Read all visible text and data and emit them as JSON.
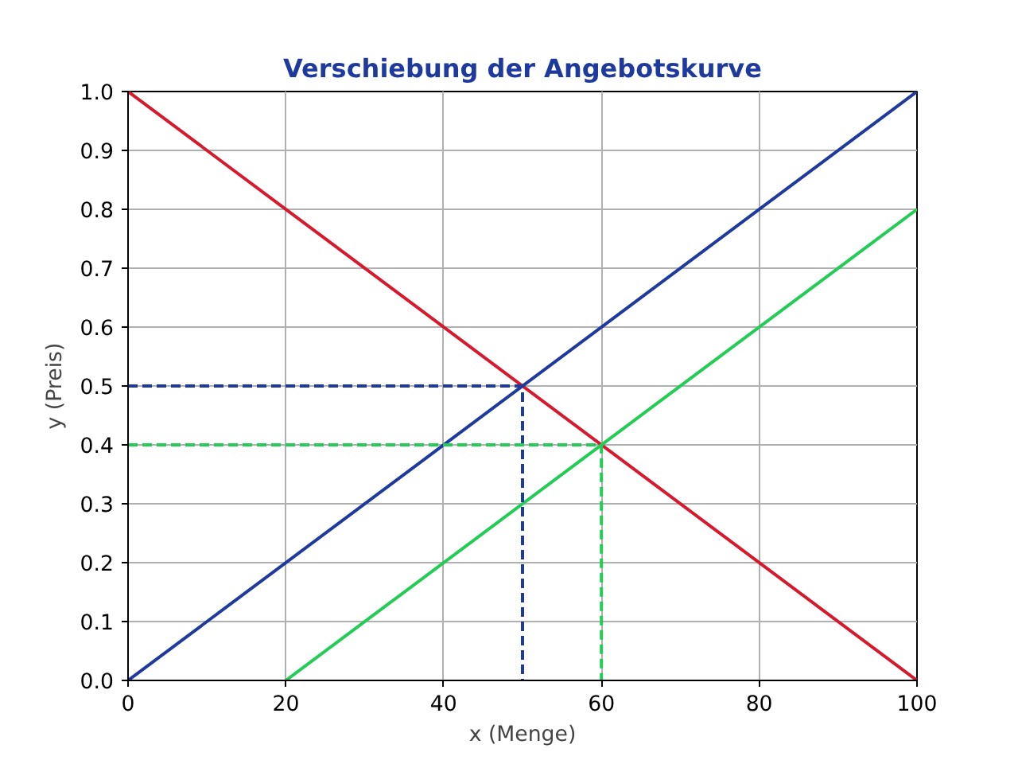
{
  "chart_data": {
    "type": "line",
    "title": "Verschiebung der Angebotskurve",
    "xlabel": "x (Menge)",
    "ylabel": "y (Preis)",
    "xlim": [
      0,
      100
    ],
    "ylim": [
      0,
      1
    ],
    "xticks": [
      0,
      20,
      40,
      60,
      80,
      100
    ],
    "yticks": [
      {
        "value": 0,
        "label": "0.0"
      },
      {
        "value": 0.1,
        "label": "0.1"
      },
      {
        "value": 0.2,
        "label": "0.2"
      },
      {
        "value": 0.3,
        "label": "0.3"
      },
      {
        "value": 0.4,
        "label": "0.4"
      },
      {
        "value": 0.5,
        "label": "0.5"
      },
      {
        "value": 0.6,
        "label": "0.6"
      },
      {
        "value": 0.7,
        "label": "0.7"
      },
      {
        "value": 0.8,
        "label": "0.8"
      },
      {
        "value": 0.9,
        "label": "0.9"
      },
      {
        "value": 1,
        "label": "1.0"
      }
    ],
    "grid": true,
    "line_style": "solid",
    "series": [
      {
        "color": "#d7192d",
        "x": [
          0,
          100
        ],
        "values": [
          1,
          0
        ]
      },
      {
        "color": "#1f3a9e",
        "x": [
          0,
          100
        ],
        "values": [
          0,
          1
        ]
      },
      {
        "color": "#22cc55",
        "x": [
          20,
          100
        ],
        "values": [
          0,
          0.8
        ]
      },
      {
        "color": "#1f3a9e",
        "x": [
          0,
          50,
          50
        ],
        "values": [
          0.5,
          0.5,
          0
        ],
        "line_style": "dashed"
      },
      {
        "color": "#22cc55",
        "x": [
          0,
          60,
          60
        ],
        "values": [
          0.4,
          0.4,
          0
        ],
        "line_style": "dashed"
      }
    ]
  }
}
